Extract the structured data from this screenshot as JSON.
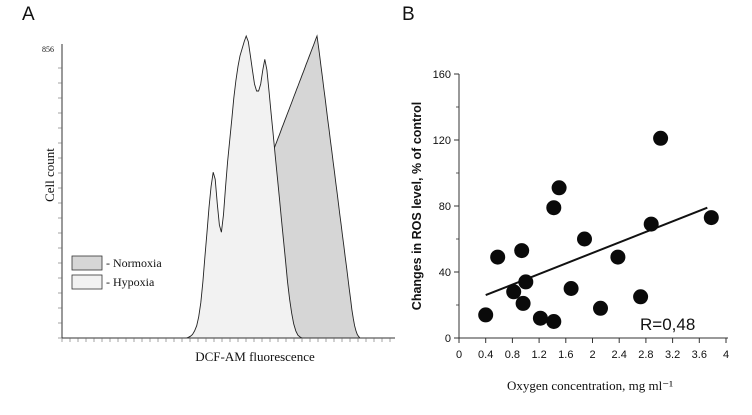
{
  "panels": {
    "a": {
      "letter": "A"
    },
    "b": {
      "letter": "B"
    }
  },
  "chart_data": [
    {
      "type": "area",
      "panel": "A",
      "xlabel": "DCF-AM fluorescence",
      "ylabel": "Cell count",
      "y_max_label": "856",
      "legend_placement": "middle-left",
      "series": [
        {
          "name": "- Normoxia",
          "fill": "#d6d6d6",
          "values": [
            0,
            0,
            0,
            0,
            0,
            0,
            1,
            2,
            3,
            5,
            8,
            12,
            18,
            26,
            35,
            45,
            56,
            68,
            80,
            92,
            104,
            116,
            128,
            140,
            152,
            164,
            176,
            188,
            200,
            212,
            224,
            236,
            246,
            256,
            266,
            276,
            286,
            296,
            306,
            316,
            326,
            336,
            346,
            356,
            366,
            376,
            386,
            396,
            406,
            416,
            426,
            436,
            446,
            456,
            466,
            476,
            486,
            496,
            506,
            516,
            526,
            536,
            546,
            556,
            566,
            576,
            586,
            596,
            606,
            616,
            626,
            636,
            646,
            656,
            666,
            676,
            686,
            696,
            706,
            716,
            726,
            736,
            746,
            756,
            766,
            776,
            786,
            796,
            806,
            816,
            826,
            836,
            846,
            856,
            830,
            800,
            770,
            740,
            710,
            680,
            650,
            620,
            590,
            560,
            530,
            500,
            470,
            440,
            410,
            380,
            350,
            320,
            290,
            260,
            230,
            200,
            170,
            140,
            110,
            80,
            55,
            35,
            20,
            10,
            4,
            0
          ]
        },
        {
          "name": "- Hypoxia",
          "fill": "#f2f2f2",
          "values": [
            0,
            0,
            0,
            0,
            0,
            0,
            2,
            5,
            10,
            20,
            35,
            60,
            100,
            160,
            230,
            300,
            370,
            430,
            470,
            450,
            380,
            320,
            300,
            350,
            430,
            500,
            560,
            620,
            680,
            730,
            770,
            800,
            820,
            840,
            856,
            840,
            800,
            760,
            720,
            700,
            700,
            720,
            760,
            790,
            760,
            700,
            640,
            580,
            520,
            460,
            400,
            340,
            280,
            220,
            160,
            110,
            70,
            40,
            20,
            8,
            3,
            0
          ]
        }
      ]
    },
    {
      "type": "scatter",
      "panel": "B",
      "xlabel": "Oxygen concentration, mg  ml⁻¹",
      "ylabel": "Changes in ROS level, % of control",
      "xlim": [
        0,
        4
      ],
      "ylim": [
        0,
        160
      ],
      "xticks": [
        "0",
        "0.4",
        "0.8",
        "1.2",
        "1.6",
        "2",
        "2.4",
        "2.8",
        "3.2",
        "3.6",
        "4"
      ],
      "yticks": [
        "0",
        "40",
        "80",
        "120",
        "160"
      ],
      "grid": false,
      "annotation": "R=0,48",
      "points": [
        {
          "x": 0.4,
          "y": 14
        },
        {
          "x": 0.58,
          "y": 49
        },
        {
          "x": 0.82,
          "y": 28
        },
        {
          "x": 0.94,
          "y": 53
        },
        {
          "x": 0.96,
          "y": 21
        },
        {
          "x": 1.0,
          "y": 34
        },
        {
          "x": 1.22,
          "y": 12
        },
        {
          "x": 1.42,
          "y": 79
        },
        {
          "x": 1.42,
          "y": 10
        },
        {
          "x": 1.5,
          "y": 91
        },
        {
          "x": 1.68,
          "y": 30
        },
        {
          "x": 1.88,
          "y": 60
        },
        {
          "x": 2.12,
          "y": 18
        },
        {
          "x": 2.38,
          "y": 49
        },
        {
          "x": 2.72,
          "y": 25
        },
        {
          "x": 2.88,
          "y": 69
        },
        {
          "x": 3.02,
          "y": 121
        },
        {
          "x": 3.78,
          "y": 73
        }
      ],
      "trendline": {
        "x0": 0.4,
        "y0": 26,
        "x1": 3.72,
        "y1": 79
      }
    }
  ]
}
